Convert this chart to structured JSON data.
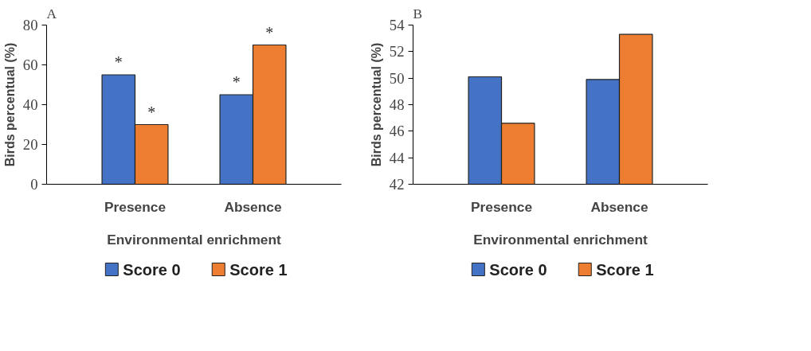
{
  "chart_data": [
    {
      "type": "bar",
      "title": "A",
      "categories": [
        "Presence",
        "Absence"
      ],
      "xlabel": "Environmental enrichment",
      "ylabel": "Birds percentual (%)",
      "ylim": [
        0,
        80
      ],
      "yticks": [
        0,
        20,
        40,
        60,
        80
      ],
      "legend": "bottom",
      "series": [
        {
          "name": "Score 0",
          "color": "#4472c4",
          "values": [
            55,
            45
          ],
          "value_labels": [
            "*",
            "*"
          ]
        },
        {
          "name": "Score 1",
          "color": "#ed7d31",
          "values": [
            30,
            70
          ],
          "value_labels": [
            "*",
            "*"
          ]
        }
      ]
    },
    {
      "type": "bar",
      "title": "B",
      "categories": [
        "Presence",
        "Absence"
      ],
      "xlabel": "Environmental enrichment",
      "ylabel": "Birds percentual (%)",
      "ylim": [
        42,
        54
      ],
      "yticks": [
        42,
        44,
        46,
        48,
        50,
        52,
        54
      ],
      "legend": "bottom",
      "series": [
        {
          "name": "Score 0",
          "color": "#4472c4",
          "values": [
            50.1,
            49.9
          ]
        },
        {
          "name": "Score 1",
          "color": "#ed7d31",
          "values": [
            46.6,
            53.3
          ]
        }
      ]
    }
  ]
}
